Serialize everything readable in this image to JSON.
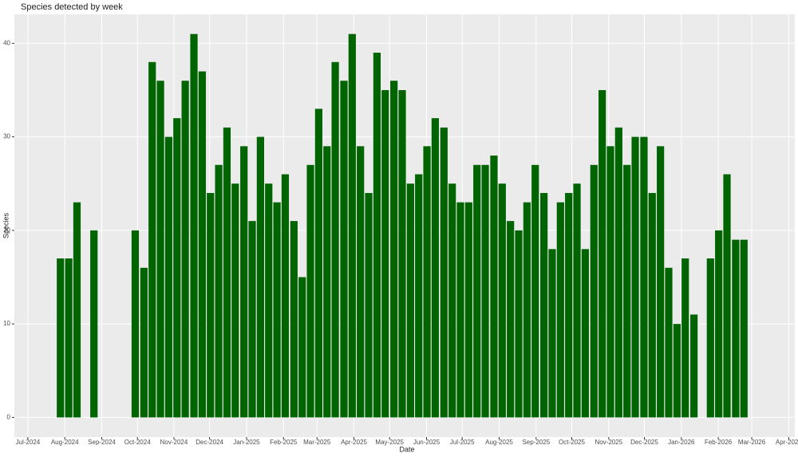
{
  "chart_data": {
    "type": "bar",
    "title": "Species detected by week",
    "x_label": "Date",
    "y_label": "Species",
    "x": [
      2024.572,
      2024.591,
      2024.61,
      2024.649,
      2024.744,
      2024.764,
      2024.783,
      2024.802,
      2024.821,
      2024.84,
      2024.859,
      2024.879,
      2024.898,
      2024.917,
      2024.936,
      2024.955,
      2024.974,
      2024.994,
      2025.013,
      2025.032,
      2025.051,
      2025.07,
      2025.089,
      2025.109,
      2025.128,
      2025.147,
      2025.166,
      2025.185,
      2025.204,
      2025.224,
      2025.243,
      2025.262,
      2025.281,
      2025.3,
      2025.319,
      2025.339,
      2025.358,
      2025.377,
      2025.396,
      2025.415,
      2025.434,
      2025.454,
      2025.473,
      2025.492,
      2025.511,
      2025.53,
      2025.549,
      2025.569,
      2025.588,
      2025.607,
      2025.626,
      2025.645,
      2025.664,
      2025.684,
      2025.703,
      2025.722,
      2025.741,
      2025.76,
      2025.779,
      2025.799,
      2025.818,
      2025.837,
      2025.856,
      2025.875,
      2025.894,
      2025.914,
      2025.933,
      2025.952,
      2025.971,
      2025.99,
      2026.009,
      2026.029,
      2026.067,
      2026.086,
      2026.105,
      2026.125,
      2026.144
    ],
    "values": [
      17,
      17,
      23,
      20,
      20,
      16,
      38,
      36,
      30,
      32,
      36,
      41,
      37,
      24,
      27,
      31,
      25,
      29,
      21,
      30,
      25,
      23,
      26,
      21,
      15,
      27,
      33,
      29,
      38,
      36,
      41,
      29,
      24,
      39,
      35,
      36,
      35,
      25,
      26,
      29,
      32,
      31,
      25,
      23,
      23,
      27,
      27,
      28,
      25,
      21,
      20,
      23,
      27,
      24,
      18,
      23,
      24,
      25,
      18,
      27,
      35,
      29,
      31,
      27,
      30,
      30,
      24,
      29,
      16,
      10,
      17,
      11,
      17,
      20,
      26,
      19,
      19
    ],
    "color": "#006400",
    "xlim": [
      2024.466,
      2026.261
    ],
    "xticks": [
      {
        "value": 2024.497,
        "label": "Jul-2024"
      },
      {
        "value": 2024.582,
        "label": "Aug-2024"
      },
      {
        "value": 2024.667,
        "label": "Sep-2024"
      },
      {
        "value": 2024.749,
        "label": "Oct-2024"
      },
      {
        "value": 2024.833,
        "label": "Nov-2024"
      },
      {
        "value": 2024.915,
        "label": "Dec-2024"
      },
      {
        "value": 2025.0,
        "label": "Jan-2025"
      },
      {
        "value": 2025.085,
        "label": "Feb-2025"
      },
      {
        "value": 2025.162,
        "label": "Mar-2025"
      },
      {
        "value": 2025.247,
        "label": "Apr-2025"
      },
      {
        "value": 2025.329,
        "label": "May-2025"
      },
      {
        "value": 2025.414,
        "label": "Jun-2025"
      },
      {
        "value": 2025.496,
        "label": "Jul-2025"
      },
      {
        "value": 2025.581,
        "label": "Aug-2025"
      },
      {
        "value": 2025.666,
        "label": "Sep-2025"
      },
      {
        "value": 2025.748,
        "label": "Oct-2025"
      },
      {
        "value": 2025.833,
        "label": "Nov-2025"
      },
      {
        "value": 2025.915,
        "label": "Dec-2025"
      },
      {
        "value": 2026.0,
        "label": "Jan-2026"
      },
      {
        "value": 2026.085,
        "label": "Feb-2026"
      },
      {
        "value": 2026.162,
        "label": "Mar-2026"
      },
      {
        "value": 2026.247,
        "label": "Apr-2026"
      }
    ],
    "ylim": [
      -2.1,
      43.1
    ],
    "yticks": [
      0,
      10,
      20,
      30,
      40
    ],
    "grid": true
  }
}
